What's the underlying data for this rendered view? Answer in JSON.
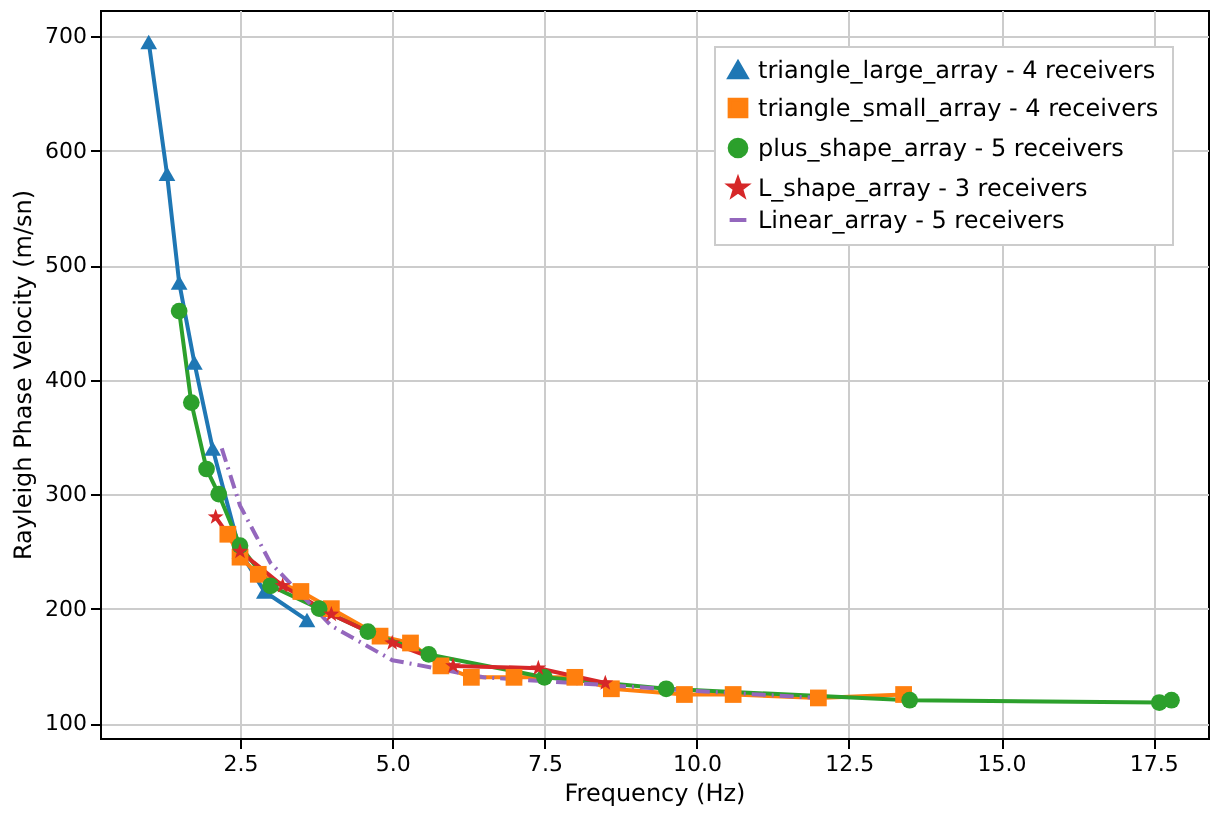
{
  "chart_data": {
    "type": "line",
    "xlabel": "Frequency (Hz)",
    "ylabel": "Rayleigh Phase Velocity (m/sn)",
    "xlim": [
      0.2,
      18.4
    ],
    "ylim": [
      87,
      723
    ],
    "xticks": [
      2.5,
      {
        "value": 5,
        "label": "5.0"
      },
      7.5,
      {
        "value": 10,
        "label": "10.0"
      },
      12.5,
      {
        "value": 15,
        "label": "15.0"
      },
      17.5
    ],
    "yticks": [
      100,
      200,
      300,
      400,
      500,
      600,
      700
    ],
    "grid": true,
    "legend": "top right",
    "series": [
      {
        "name": "triangle_large_array - 4 receivers",
        "color": "#1f77b4",
        "marker": "triangle",
        "line_style": "solid",
        "x": [
          1.0,
          1.3,
          1.5,
          1.75,
          2.05,
          2.5,
          2.9,
          3.6
        ],
        "values": [
          695,
          580,
          485,
          415,
          340,
          250,
          215,
          190
        ]
      },
      {
        "name": "triangle_small_array - 4 receivers",
        "color": "#ff7f0e",
        "marker": "square",
        "line_style": "solid",
        "x": [
          2.3,
          2.5,
          2.8,
          3.5,
          4.0,
          4.8,
          5.3,
          5.8,
          6.3,
          7.0,
          8.0,
          8.6,
          9.8,
          10.6,
          12.0,
          13.4
        ],
        "values": [
          265,
          245,
          230,
          215,
          200,
          176,
          170,
          150,
          140,
          140,
          140,
          130,
          125,
          125,
          122,
          125
        ]
      },
      {
        "name": "plus_shape_array - 5 receivers",
        "color": "#2ca02c",
        "marker": "circle",
        "line_style": "solid",
        "x": [
          1.5,
          1.7,
          1.95,
          2.15,
          2.5,
          3.0,
          3.8,
          4.6,
          5.6,
          7.5,
          9.5,
          13.5,
          17.6,
          17.8
        ],
        "values": [
          460,
          380,
          322,
          300,
          255,
          220,
          200,
          180,
          160,
          140,
          130,
          120,
          118,
          120
        ]
      },
      {
        "name": "L_shape_array - 3 receivers",
        "color": "#d62728",
        "marker": "star",
        "line_style": "solid",
        "x": [
          2.1,
          2.5,
          3.2,
          4.0,
          5.0,
          6.0,
          7.4,
          8.5
        ],
        "values": [
          280,
          250,
          220,
          195,
          170,
          150,
          148,
          135
        ]
      },
      {
        "name": "Linear_array - 5 receivers",
        "color": "#9467bd",
        "marker": "none",
        "line_style": "dashdot",
        "x": [
          2.2,
          2.5,
          3.0,
          4.0,
          5.0,
          6.5,
          8.0,
          10.0,
          12.0
        ],
        "values": [
          340,
          290,
          240,
          185,
          155,
          140,
          135,
          128,
          122
        ]
      }
    ]
  }
}
